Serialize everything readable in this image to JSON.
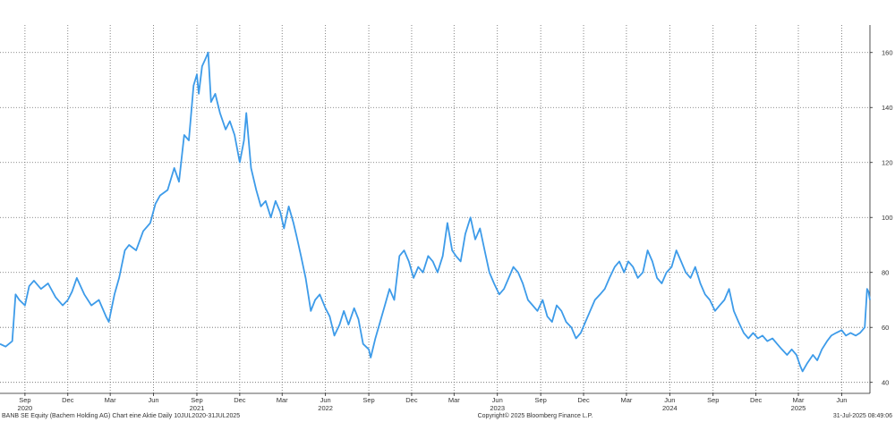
{
  "chart_data": {
    "type": "line",
    "title": "",
    "xlabel": "",
    "ylabel": "",
    "ylim": [
      36,
      170
    ],
    "y_ticks": [
      40,
      60,
      80,
      100,
      120,
      140,
      160
    ],
    "y_axis_side": "right",
    "grid": true,
    "x_range": [
      "2020-07-10",
      "2025-07-31"
    ],
    "month_ticks": [
      {
        "label": "Sep",
        "date": "2020-09-01"
      },
      {
        "label": "Dec",
        "date": "2020-12-01"
      },
      {
        "label": "Mar",
        "date": "2021-03-01"
      },
      {
        "label": "Jun",
        "date": "2021-06-01"
      },
      {
        "label": "Sep",
        "date": "2021-09-01"
      },
      {
        "label": "Dec",
        "date": "2021-12-01"
      },
      {
        "label": "Mar",
        "date": "2022-03-01"
      },
      {
        "label": "Jun",
        "date": "2022-06-01"
      },
      {
        "label": "Sep",
        "date": "2022-09-01"
      },
      {
        "label": "Dec",
        "date": "2022-12-01"
      },
      {
        "label": "Mar",
        "date": "2023-03-01"
      },
      {
        "label": "Jun",
        "date": "2023-06-01"
      },
      {
        "label": "Sep",
        "date": "2023-09-01"
      },
      {
        "label": "Dec",
        "date": "2023-12-01"
      },
      {
        "label": "Mar",
        "date": "2024-03-01"
      },
      {
        "label": "Jun",
        "date": "2024-06-01"
      },
      {
        "label": "Sep",
        "date": "2024-09-01"
      },
      {
        "label": "Dec",
        "date": "2024-12-01"
      },
      {
        "label": "Mar",
        "date": "2025-03-01"
      },
      {
        "label": "Jun",
        "date": "2025-06-01"
      }
    ],
    "year_labels": [
      {
        "label": "2020",
        "date": "2020-09-01"
      },
      {
        "label": "2021",
        "date": "2021-09-01"
      },
      {
        "label": "2022",
        "date": "2022-06-01"
      },
      {
        "label": "2023",
        "date": "2023-06-01"
      },
      {
        "label": "2024",
        "date": "2024-06-01"
      },
      {
        "label": "2025",
        "date": "2025-03-01"
      }
    ],
    "series": [
      {
        "color": "#3d9be9",
        "points": [
          [
            "2020-07-10",
            54
          ],
          [
            "2020-07-22",
            53
          ],
          [
            "2020-08-05",
            55
          ],
          [
            "2020-08-12",
            72
          ],
          [
            "2020-08-20",
            70
          ],
          [
            "2020-09-01",
            68
          ],
          [
            "2020-09-10",
            75
          ],
          [
            "2020-09-20",
            77
          ],
          [
            "2020-10-05",
            74
          ],
          [
            "2020-10-20",
            76
          ],
          [
            "2020-11-05",
            71
          ],
          [
            "2020-11-20",
            68
          ],
          [
            "2020-12-01",
            70
          ],
          [
            "2020-12-10",
            73
          ],
          [
            "2020-12-20",
            78
          ],
          [
            "2021-01-05",
            72
          ],
          [
            "2021-01-20",
            68
          ],
          [
            "2021-02-05",
            70
          ],
          [
            "2021-02-20",
            64
          ],
          [
            "2021-02-26",
            62
          ],
          [
            "2021-03-10",
            72
          ],
          [
            "2021-03-20",
            78
          ],
          [
            "2021-04-01",
            88
          ],
          [
            "2021-04-10",
            90
          ],
          [
            "2021-04-25",
            88
          ],
          [
            "2021-05-10",
            95
          ],
          [
            "2021-05-25",
            98
          ],
          [
            "2021-06-05",
            105
          ],
          [
            "2021-06-15",
            108
          ],
          [
            "2021-07-01",
            110
          ],
          [
            "2021-07-15",
            118
          ],
          [
            "2021-07-25",
            113
          ],
          [
            "2021-08-05",
            130
          ],
          [
            "2021-08-15",
            128
          ],
          [
            "2021-08-25",
            148
          ],
          [
            "2021-09-01",
            152
          ],
          [
            "2021-09-05",
            145
          ],
          [
            "2021-09-12",
            155
          ],
          [
            "2021-09-20",
            158
          ],
          [
            "2021-09-25",
            160
          ],
          [
            "2021-10-01",
            142
          ],
          [
            "2021-10-10",
            145
          ],
          [
            "2021-10-20",
            138
          ],
          [
            "2021-11-01",
            132
          ],
          [
            "2021-11-10",
            135
          ],
          [
            "2021-11-20",
            130
          ],
          [
            "2021-12-01",
            120
          ],
          [
            "2021-12-10",
            128
          ],
          [
            "2021-12-15",
            138
          ],
          [
            "2021-12-25",
            118
          ],
          [
            "2022-01-05",
            110
          ],
          [
            "2022-01-15",
            104
          ],
          [
            "2022-01-25",
            106
          ],
          [
            "2022-02-05",
            100
          ],
          [
            "2022-02-15",
            106
          ],
          [
            "2022-02-25",
            102
          ],
          [
            "2022-03-05",
            96
          ],
          [
            "2022-03-15",
            104
          ],
          [
            "2022-03-25",
            98
          ],
          [
            "2022-04-01",
            93
          ],
          [
            "2022-04-10",
            86
          ],
          [
            "2022-04-20",
            78
          ],
          [
            "2022-05-01",
            66
          ],
          [
            "2022-05-10",
            70
          ],
          [
            "2022-05-20",
            72
          ],
          [
            "2022-06-01",
            67
          ],
          [
            "2022-06-10",
            64
          ],
          [
            "2022-06-20",
            57
          ],
          [
            "2022-07-01",
            61
          ],
          [
            "2022-07-10",
            66
          ],
          [
            "2022-07-20",
            61
          ],
          [
            "2022-08-01",
            67
          ],
          [
            "2022-08-10",
            63
          ],
          [
            "2022-08-20",
            54
          ],
          [
            "2022-09-01",
            52
          ],
          [
            "2022-09-05",
            49
          ],
          [
            "2022-09-15",
            56
          ],
          [
            "2022-09-25",
            62
          ],
          [
            "2022-10-05",
            68
          ],
          [
            "2022-10-15",
            74
          ],
          [
            "2022-10-25",
            70
          ],
          [
            "2022-11-05",
            86
          ],
          [
            "2022-11-15",
            88
          ],
          [
            "2022-11-25",
            84
          ],
          [
            "2022-12-05",
            78
          ],
          [
            "2022-12-15",
            82
          ],
          [
            "2022-12-25",
            80
          ],
          [
            "2023-01-05",
            86
          ],
          [
            "2023-01-15",
            84
          ],
          [
            "2023-01-25",
            80
          ],
          [
            "2023-02-05",
            86
          ],
          [
            "2023-02-15",
            98
          ],
          [
            "2023-02-25",
            88
          ],
          [
            "2023-03-05",
            86
          ],
          [
            "2023-03-15",
            84
          ],
          [
            "2023-03-25",
            94
          ],
          [
            "2023-04-05",
            100
          ],
          [
            "2023-04-15",
            92
          ],
          [
            "2023-04-25",
            96
          ],
          [
            "2023-05-05",
            88
          ],
          [
            "2023-05-15",
            80
          ],
          [
            "2023-05-25",
            76
          ],
          [
            "2023-06-05",
            72
          ],
          [
            "2023-06-15",
            74
          ],
          [
            "2023-06-25",
            78
          ],
          [
            "2023-07-05",
            82
          ],
          [
            "2023-07-15",
            80
          ],
          [
            "2023-07-25",
            76
          ],
          [
            "2023-08-05",
            70
          ],
          [
            "2023-08-15",
            68
          ],
          [
            "2023-08-25",
            66
          ],
          [
            "2023-09-05",
            70
          ],
          [
            "2023-09-15",
            64
          ],
          [
            "2023-09-25",
            62
          ],
          [
            "2023-10-05",
            68
          ],
          [
            "2023-10-15",
            66
          ],
          [
            "2023-10-25",
            62
          ],
          [
            "2023-11-05",
            60
          ],
          [
            "2023-11-15",
            56
          ],
          [
            "2023-11-25",
            58
          ],
          [
            "2023-12-05",
            62
          ],
          [
            "2023-12-15",
            66
          ],
          [
            "2023-12-25",
            70
          ],
          [
            "2024-01-05",
            72
          ],
          [
            "2024-01-15",
            74
          ],
          [
            "2024-01-25",
            78
          ],
          [
            "2024-02-05",
            82
          ],
          [
            "2024-02-15",
            84
          ],
          [
            "2024-02-25",
            80
          ],
          [
            "2024-03-05",
            84
          ],
          [
            "2024-03-15",
            82
          ],
          [
            "2024-03-25",
            78
          ],
          [
            "2024-04-05",
            80
          ],
          [
            "2024-04-15",
            88
          ],
          [
            "2024-04-25",
            84
          ],
          [
            "2024-05-05",
            78
          ],
          [
            "2024-05-15",
            76
          ],
          [
            "2024-05-25",
            80
          ],
          [
            "2024-06-05",
            82
          ],
          [
            "2024-06-15",
            88
          ],
          [
            "2024-06-25",
            84
          ],
          [
            "2024-07-05",
            80
          ],
          [
            "2024-07-15",
            78
          ],
          [
            "2024-07-25",
            82
          ],
          [
            "2024-08-05",
            76
          ],
          [
            "2024-08-15",
            72
          ],
          [
            "2024-08-25",
            70
          ],
          [
            "2024-09-05",
            66
          ],
          [
            "2024-09-15",
            68
          ],
          [
            "2024-09-25",
            70
          ],
          [
            "2024-10-05",
            74
          ],
          [
            "2024-10-15",
            66
          ],
          [
            "2024-10-25",
            62
          ],
          [
            "2024-11-05",
            58
          ],
          [
            "2024-11-15",
            56
          ],
          [
            "2024-11-25",
            58
          ],
          [
            "2024-12-05",
            56
          ],
          [
            "2024-12-15",
            57
          ],
          [
            "2024-12-25",
            55
          ],
          [
            "2025-01-05",
            56
          ],
          [
            "2025-01-15",
            54
          ],
          [
            "2025-01-25",
            52
          ],
          [
            "2025-02-05",
            50
          ],
          [
            "2025-02-15",
            52
          ],
          [
            "2025-02-25",
            50
          ],
          [
            "2025-03-05",
            46
          ],
          [
            "2025-03-10",
            44
          ],
          [
            "2025-03-20",
            47
          ],
          [
            "2025-04-01",
            50
          ],
          [
            "2025-04-10",
            48
          ],
          [
            "2025-04-20",
            52
          ],
          [
            "2025-05-01",
            55
          ],
          [
            "2025-05-10",
            57
          ],
          [
            "2025-05-20",
            58
          ],
          [
            "2025-06-01",
            59
          ],
          [
            "2025-06-10",
            57
          ],
          [
            "2025-06-20",
            58
          ],
          [
            "2025-07-01",
            57
          ],
          [
            "2025-07-10",
            58
          ],
          [
            "2025-07-20",
            60
          ],
          [
            "2025-07-25",
            74
          ],
          [
            "2025-07-28",
            73
          ],
          [
            "2025-07-31",
            70
          ]
        ]
      }
    ]
  },
  "footer": {
    "left": "BANB SE Equity (Bachem Holding AG) Chart eine Aktie  Daily 10JUL2020-31JUL2025",
    "center": "Copyright© 2025 Bloomberg Finance L.P.",
    "right": "31-Jul-2025 08:49:06"
  }
}
